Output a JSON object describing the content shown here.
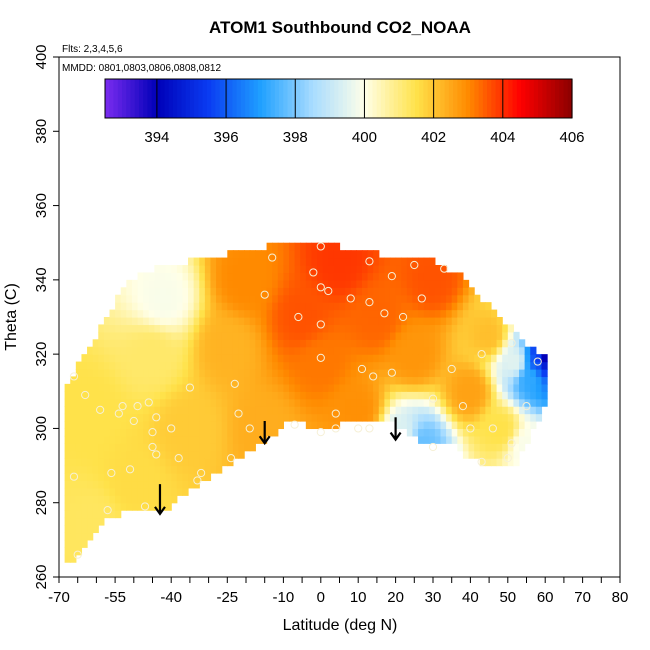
{
  "chart_data": {
    "type": "heatmap",
    "title": "ATOM1 Southbound CO2_NOAA",
    "notes": [
      "Flts: 2,3,4,5,6",
      "MMDD: 0801,0803,0806,0808,0812"
    ],
    "xlabel": "Latitude (deg N)",
    "ylabel": "Theta (C)",
    "xlim": [
      -70,
      80
    ],
    "ylim": [
      260,
      400
    ],
    "xticks": [
      -70,
      -55,
      -40,
      -25,
      -10,
      0,
      10,
      20,
      30,
      40,
      50,
      60,
      70,
      80
    ],
    "yticks": [
      260,
      280,
      300,
      320,
      340,
      360,
      380,
      400
    ],
    "colorbar": {
      "range": [
        392.5,
        406
      ],
      "ticks": [
        394,
        396,
        398,
        400,
        402,
        404,
        406
      ],
      "colors": [
        "#7b2cf0",
        "#0000b8",
        "#0a3cf2",
        "#1fa0ff",
        "#a8dcff",
        "#ffffe8",
        "#ffe24a",
        "#ff8a00",
        "#ff0000",
        "#8b0000"
      ]
    },
    "field": {
      "boundary": [
        [
          -68,
          265
        ],
        [
          -68,
          312
        ],
        [
          -60,
          325
        ],
        [
          -52,
          339
        ],
        [
          -45,
          343
        ],
        [
          -30,
          346
        ],
        [
          -15,
          349
        ],
        [
          0,
          350
        ],
        [
          15,
          347
        ],
        [
          30,
          345
        ],
        [
          38,
          341
        ],
        [
          45,
          333
        ],
        [
          52,
          326
        ],
        [
          55,
          322
        ],
        [
          60,
          320
        ],
        [
          60,
          306
        ],
        [
          56,
          298
        ],
        [
          52,
          290
        ],
        [
          45,
          290
        ],
        [
          40,
          292
        ],
        [
          35,
          296
        ],
        [
          28,
          296
        ],
        [
          20,
          301
        ],
        [
          10,
          302
        ],
        [
          0,
          300
        ],
        [
          -8,
          302
        ],
        [
          -20,
          293
        ],
        [
          -30,
          287
        ],
        [
          -43,
          277
        ],
        [
          -50,
          278
        ],
        [
          -58,
          276
        ],
        [
          -65,
          265
        ]
      ],
      "cells": [
        {
          "lat": -60,
          "theta": 275,
          "value": 401.3
        },
        {
          "lat": -62,
          "theta": 305,
          "value": 401.5
        },
        {
          "lat": -50,
          "theta": 285,
          "value": 401.6
        },
        {
          "lat": -45,
          "theta": 320,
          "value": 401.2
        },
        {
          "lat": -42,
          "theta": 335,
          "value": 399.9
        },
        {
          "lat": -35,
          "theta": 300,
          "value": 401.9
        },
        {
          "lat": -25,
          "theta": 322,
          "value": 402.3
        },
        {
          "lat": -20,
          "theta": 340,
          "value": 403.0
        },
        {
          "lat": -15,
          "theta": 300,
          "value": 402.4
        },
        {
          "lat": -5,
          "theta": 330,
          "value": 403.6
        },
        {
          "lat": 0,
          "theta": 318,
          "value": 403.2
        },
        {
          "lat": 5,
          "theta": 345,
          "value": 403.9
        },
        {
          "lat": 10,
          "theta": 305,
          "value": 402.9
        },
        {
          "lat": 15,
          "theta": 330,
          "value": 403.4
        },
        {
          "lat": 25,
          "theta": 320,
          "value": 402.8
        },
        {
          "lat": 30,
          "theta": 340,
          "value": 403.6
        },
        {
          "lat": 40,
          "theta": 310,
          "value": 402.6
        },
        {
          "lat": 45,
          "theta": 325,
          "value": 402.1
        },
        {
          "lat": 48,
          "theta": 300,
          "value": 401.5
        },
        {
          "lat": 22,
          "theta": 298,
          "value": 399.4
        },
        {
          "lat": 27,
          "theta": 296,
          "value": 397.8
        },
        {
          "lat": 52,
          "theta": 318,
          "value": 399.5
        },
        {
          "lat": 56,
          "theta": 314,
          "value": 397.2
        },
        {
          "lat": 58,
          "theta": 318,
          "value": 396.0
        },
        {
          "lat": 60,
          "theta": 319,
          "value": 393.7
        },
        {
          "lat": 55,
          "theta": 295,
          "value": 399.9
        }
      ]
    },
    "points": [
      [
        -65,
        266
      ],
      [
        -66,
        287
      ],
      [
        -66,
        314
      ],
      [
        -63,
        309
      ],
      [
        -59,
        305
      ],
      [
        -57,
        278
      ],
      [
        -56,
        288
      ],
      [
        -54,
        304
      ],
      [
        -53,
        306
      ],
      [
        -51,
        289
      ],
      [
        -50,
        302
      ],
      [
        -49,
        306
      ],
      [
        -47,
        279
      ],
      [
        -46,
        307
      ],
      [
        -45,
        295
      ],
      [
        -45,
        299
      ],
      [
        -44,
        293
      ],
      [
        -44,
        303
      ],
      [
        -40,
        300
      ],
      [
        -38,
        292
      ],
      [
        -35,
        311
      ],
      [
        -33,
        286
      ],
      [
        -32,
        288
      ],
      [
        -24,
        292
      ],
      [
        -23,
        312
      ],
      [
        -22,
        304
      ],
      [
        -19,
        300
      ],
      [
        -15,
        336
      ],
      [
        -13,
        346
      ],
      [
        -7,
        301
      ],
      [
        -6,
        330
      ],
      [
        -2,
        342
      ],
      [
        0,
        299
      ],
      [
        0,
        349
      ],
      [
        0,
        338
      ],
      [
        0,
        328
      ],
      [
        0,
        319
      ],
      [
        2,
        337
      ],
      [
        4,
        300
      ],
      [
        4,
        304
      ],
      [
        8,
        335
      ],
      [
        10,
        300
      ],
      [
        11,
        316
      ],
      [
        13,
        345
      ],
      [
        13,
        300
      ],
      [
        13,
        334
      ],
      [
        14,
        314
      ],
      [
        17,
        331
      ],
      [
        19,
        315
      ],
      [
        19,
        341
      ],
      [
        22,
        330
      ],
      [
        25,
        344
      ],
      [
        27,
        335
      ],
      [
        30,
        308
      ],
      [
        30,
        295
      ],
      [
        33,
        343
      ],
      [
        35,
        316
      ],
      [
        38,
        306
      ],
      [
        40,
        300
      ],
      [
        43,
        320
      ],
      [
        43,
        291
      ],
      [
        46,
        300
      ],
      [
        50,
        292
      ],
      [
        51,
        296
      ],
      [
        55,
        306
      ],
      [
        58,
        318
      ],
      [
        51,
        323
      ]
    ],
    "arrows": [
      {
        "lat": -43,
        "theta_from": 285,
        "theta_to": 277
      },
      {
        "lat": -15,
        "theta_from": 302,
        "theta_to": 296
      },
      {
        "lat": 20,
        "theta_from": 303,
        "theta_to": 297
      }
    ]
  }
}
